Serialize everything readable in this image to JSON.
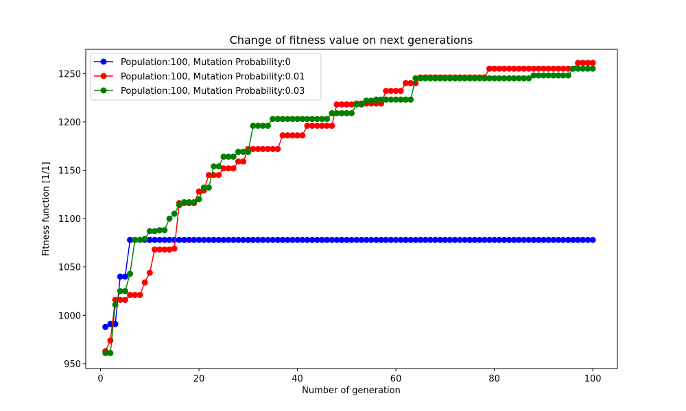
{
  "chart_data": {
    "type": "line",
    "title": "Change of fitness value on next generations",
    "xlabel": "Number of generation",
    "ylabel": "Fitness function [1/1]",
    "xlim": [
      -3,
      105
    ],
    "ylim": [
      945,
      1275
    ],
    "xticks": [
      0,
      20,
      40,
      60,
      80,
      100
    ],
    "yticks": [
      950,
      1000,
      1050,
      1100,
      1150,
      1200,
      1250
    ],
    "grid": false,
    "legend_position": "top-left",
    "series": [
      {
        "name": "Population:100, Mutation Probability:0",
        "color": "#0000ff",
        "steps": [
          [
            1,
            988
          ],
          [
            2,
            991
          ],
          [
            4,
            1040
          ],
          [
            6,
            1078
          ]
        ]
      },
      {
        "name": "Population:100, Mutation Probability:0.01",
        "color": "#ff0000",
        "steps": [
          [
            1,
            963
          ],
          [
            2,
            974
          ],
          [
            3,
            1016
          ],
          [
            6,
            1021
          ],
          [
            9,
            1034
          ],
          [
            10,
            1044
          ],
          [
            11,
            1068
          ],
          [
            15,
            1069
          ],
          [
            16,
            1116
          ],
          [
            20,
            1128
          ],
          [
            21,
            1129
          ],
          [
            22,
            1145
          ],
          [
            25,
            1152
          ],
          [
            28,
            1159
          ],
          [
            30,
            1172
          ],
          [
            37,
            1186
          ],
          [
            42,
            1196
          ],
          [
            48,
            1218
          ],
          [
            52,
            1219
          ],
          [
            58,
            1232
          ],
          [
            62,
            1240
          ],
          [
            65,
            1246
          ],
          [
            79,
            1255
          ],
          [
            97,
            1261
          ]
        ]
      },
      {
        "name": "Population:100, Mutation Probability:0.03",
        "color": "#008000",
        "steps": [
          [
            1,
            961
          ],
          [
            3,
            1011
          ],
          [
            4,
            1025
          ],
          [
            6,
            1043
          ],
          [
            7,
            1078
          ],
          [
            9,
            1079
          ],
          [
            10,
            1087
          ],
          [
            12,
            1088
          ],
          [
            14,
            1100
          ],
          [
            15,
            1105
          ],
          [
            16,
            1114
          ],
          [
            17,
            1117
          ],
          [
            20,
            1120
          ],
          [
            21,
            1132
          ],
          [
            23,
            1154
          ],
          [
            25,
            1164
          ],
          [
            28,
            1169
          ],
          [
            31,
            1196
          ],
          [
            35,
            1203
          ],
          [
            47,
            1209
          ],
          [
            52,
            1218
          ],
          [
            54,
            1222
          ],
          [
            56,
            1223
          ],
          [
            64,
            1245
          ],
          [
            67,
            1245
          ],
          [
            88,
            1248
          ],
          [
            96,
            1255
          ]
        ]
      }
    ],
    "n_generations": 100
  }
}
